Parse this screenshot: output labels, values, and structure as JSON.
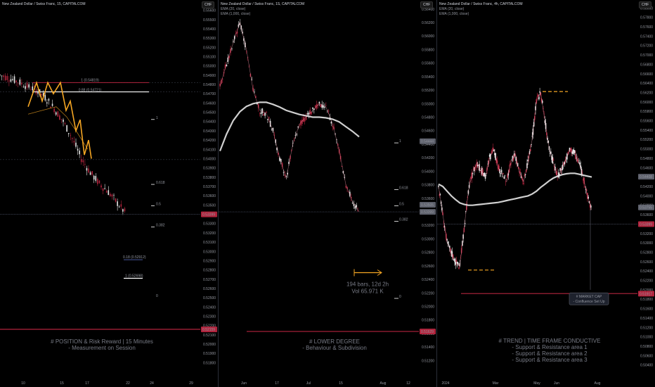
{
  "panels": [
    {
      "id": "p1",
      "title": "New Zealand Dollar / Swiss Franc, 15, CAPITALCOM",
      "currency": "CHF",
      "y_ticks": [
        "0.55600",
        "0.55500",
        "0.55400",
        "0.55300",
        "0.55200",
        "0.55100",
        "0.55000",
        "0.54900",
        "0.54800",
        "0.54700",
        "0.54600",
        "0.54500",
        "0.54400",
        "0.54300",
        "0.54200",
        "0.54100",
        "0.54000",
        "0.53900",
        "0.53800",
        "0.53700",
        "0.53600",
        "0.53500",
        "0.53400",
        "0.53300",
        "0.53200",
        "0.53100",
        "0.53000",
        "0.52900",
        "0.52800",
        "0.52700",
        "0.52600",
        "0.52500",
        "0.52400",
        "0.52300",
        "0.52200",
        "0.52100",
        "0.52000",
        "0.51900",
        "0.51800"
      ],
      "x_ticks": [
        "10",
        "15",
        "17",
        "22",
        "24",
        "29"
      ],
      "price_tags": [
        {
          "text": "0.53399",
          "color": "#b2243d"
        },
        {
          "text": "0.52159",
          "color": "#b2243d"
        }
      ],
      "fib_labels": [
        "1 (0.54819)",
        "0.88 (0.54721)",
        "1",
        "0.618",
        "0.5",
        "0.382",
        "0.18 (0.52912)",
        "1 (0.52698)",
        "0"
      ],
      "notes": [
        "# POSITION & Risk Reward | 15 Minutes",
        "- Measurement on Session"
      ]
    },
    {
      "id": "p2",
      "title": "New Zealand Dollar / Swiss Franc, 1S, CAPITALCOM",
      "indicators": [
        "EMA (20, close)",
        "EMA (1,000, close)"
      ],
      "currency": "CHF",
      "y_ticks": [
        "0.56400",
        "0.56200",
        "0.56000",
        "0.55800",
        "0.55600",
        "0.55400",
        "0.55200",
        "0.55000",
        "0.54800",
        "0.54600",
        "0.54400",
        "0.54200",
        "0.54000",
        "0.53800",
        "0.53600",
        "0.53400",
        "0.53200",
        "0.53000",
        "0.52800",
        "0.52600",
        "0.52400",
        "0.52200",
        "0.52000",
        "0.51800",
        "0.51600",
        "0.51400",
        "0.51200"
      ],
      "x_ticks": [
        "Jun",
        "17",
        "Jul",
        "15",
        "Aug",
        "12"
      ],
      "price_tags": [
        {
          "text": "0.54444",
          "color": "#5d606b"
        },
        {
          "text": "0.53505",
          "color": "#5d606b"
        },
        {
          "text": "0.53399",
          "color": "#5d606b"
        },
        {
          "text": "0.51629",
          "color": "#b2243d"
        }
      ],
      "fib_labels": [
        "1",
        "0.618",
        "0.5",
        "0.382",
        "0"
      ],
      "measure": {
        "bars": "194 bars, 12d 2h",
        "vol": "Vol 65.971 K"
      },
      "notes": [
        "# LOWER DEGREE",
        "- Behaviour & Subdivision"
      ]
    },
    {
      "id": "p3",
      "title": "New Zealand Dollar / Swiss Franc, 4h, CAPITALCOM",
      "indicators": [
        "EMA (20, close)",
        "EMA (1,000, close)"
      ],
      "currency": "CHF",
      "y_ticks": [
        "0.58000",
        "0.57800",
        "0.57600",
        "0.57400",
        "0.57200",
        "0.57000",
        "0.56800",
        "0.56600",
        "0.56400",
        "0.56200",
        "0.56000",
        "0.55800",
        "0.55600",
        "0.55400",
        "0.55200",
        "0.55000",
        "0.54800",
        "0.54600",
        "0.54400",
        "0.54200",
        "0.54000",
        "0.53800",
        "0.53600",
        "0.53400",
        "0.53200",
        "0.53000",
        "0.52800",
        "0.52600",
        "0.52400",
        "0.52200",
        "0.52000",
        "0.51800",
        "0.51600",
        "0.51400",
        "0.51200",
        "0.51000",
        "0.50800",
        "0.50600",
        "0.50400"
      ],
      "x_ticks": [
        "2024",
        "Mar",
        "May",
        "Jun",
        "Aug"
      ],
      "price_tags": [
        {
          "text": "0.54408",
          "color": "#5d606b"
        },
        {
          "text": "0.53755",
          "color": "#5d606b"
        },
        {
          "text": "0.53399",
          "color": "#b2243d"
        },
        {
          "text": "0.51917",
          "color": "#b2243d"
        }
      ],
      "callout": [
        "# MARKET CAP",
        "- Confluence Set Up"
      ],
      "notes": [
        "# TREND | TIME FRAME CONDUCTIVE",
        "- Support & Resistance area 1",
        "- Support & Resistance area 2",
        "- Support & Resistance area 3"
      ]
    }
  ],
  "chart_data": [
    {
      "type": "line",
      "title": "New Zealand Dollar / Swiss Franc, 15, CAPITALCOM",
      "ylim": [
        0.5175,
        0.5565
      ],
      "x_index": [
        0,
        5,
        10,
        15,
        20,
        25,
        30,
        35,
        40,
        45,
        50,
        55,
        60,
        65,
        70
      ],
      "series": [
        {
          "values": [
            0.549,
            0.5487,
            0.5483,
            0.5478,
            0.5474,
            0.5466,
            0.5454,
            0.544,
            0.5422,
            0.54,
            0.5385,
            0.5373,
            0.5364,
            0.5352,
            0.534
          ]
        }
      ],
      "levels": [
        0.5482,
        0.5472,
        0.5399,
        0.534,
        0.5216
      ]
    },
    {
      "type": "line",
      "title": "New Zealand Dollar / Swiss Franc, 1S, CAPITALCOM",
      "ylim": [
        0.511,
        0.5645
      ],
      "x_index": [
        0,
        2,
        4,
        6,
        8,
        10,
        12,
        14,
        16,
        18,
        20,
        22,
        24,
        26,
        28,
        30,
        32,
        34,
        36,
        38,
        40,
        42
      ],
      "series": [
        {
          "name": "EMA (20, close)",
          "values": [
            0.5525,
            0.556,
            0.559,
            0.562,
            0.558,
            0.552,
            0.549,
            0.5485,
            0.546,
            0.542,
            0.539,
            0.544,
            0.547,
            0.548,
            0.549,
            0.55,
            0.5495,
            0.547,
            0.543,
            0.538,
            0.5355,
            0.534
          ]
        },
        {
          "name": "EMA (1,000, close)",
          "values": [
            0.543,
            0.5455,
            0.5475,
            0.5488,
            0.5496,
            0.55,
            0.5502,
            0.5502,
            0.5499,
            0.5495,
            0.549,
            0.5487,
            0.5484,
            0.5482,
            0.548,
            0.548,
            0.5479,
            0.5477,
            0.5473,
            0.5466,
            0.5459,
            0.5451
          ]
        }
      ],
      "levels": [
        0.534,
        0.5163
      ]
    },
    {
      "type": "line",
      "title": "New Zealand Dollar / Swiss Franc, 4h, CAPITALCOM",
      "ylim": [
        0.5035,
        0.5805
      ],
      "x_index": [
        0,
        2,
        4,
        6,
        8,
        10,
        12,
        14,
        16,
        18,
        20,
        22,
        24,
        26,
        28,
        30,
        32,
        34,
        36,
        38,
        40,
        42,
        44,
        46,
        48,
        50,
        52,
        54,
        56,
        58,
        60,
        62,
        64,
        66,
        68,
        70,
        72
      ],
      "series": [
        {
          "name": "EMA (20, close)",
          "values": [
            0.542,
            0.536,
            0.53,
            0.528,
            0.526,
            0.525,
            0.533,
            0.541,
            0.545,
            0.547,
            0.5455,
            0.544,
            0.548,
            0.55,
            0.546,
            0.5445,
            0.543,
            0.547,
            0.549,
            0.545,
            0.543,
            0.547,
            0.552,
            0.56,
            0.562,
            0.556,
            0.55,
            0.547,
            0.544,
            0.546,
            0.548,
            0.55,
            0.549,
            0.547,
            0.544,
            0.54,
            0.537
          ]
        },
        {
          "name": "EMA (1,000, close)",
          "values": [
            0.5425,
            0.542,
            0.541,
            0.54,
            0.5392,
            0.5385,
            0.5382,
            0.538,
            0.538,
            0.5381,
            0.5382,
            0.5383,
            0.5384,
            0.5385,
            0.5386,
            0.5388,
            0.539,
            0.5392,
            0.5394,
            0.5396,
            0.5398,
            0.54,
            0.5404,
            0.541,
            0.5418,
            0.5425,
            0.5432,
            0.5438,
            0.5442,
            0.5445,
            0.5447,
            0.5448,
            0.5448,
            0.5446,
            0.5444,
            0.5442,
            0.544
          ]
        }
      ],
      "levels": [
        0.534,
        0.5192
      ]
    }
  ]
}
